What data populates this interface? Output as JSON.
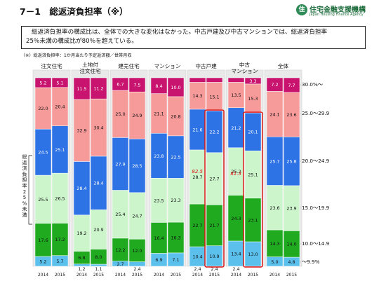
{
  "header": {
    "title": "7－1　総返済負担率（※）",
    "logo_mark": "住",
    "logo_text_jp": "住宅金融支援機構",
    "logo_text_en": "Japan Housing Finance Agency"
  },
  "summary": {
    "line1": "総返済負担率の構成比は、全体での大きな変化はなかった。中古戸建及び中古マンションでは、総返済負担率",
    "line2": "25％未満の構成比が80％を超えている。"
  },
  "note": "（※）総返済負担率：1か月当たり予定返済額／世帯月収",
  "chart_data": {
    "type": "bar",
    "stacked": true,
    "y_axis_label": "総返済負担率25%未満",
    "groups": [
      {
        "name": "注文住宅",
        "years": [
          "2014",
          "2015"
        ]
      },
      {
        "name": "土地付\n注文住宅",
        "years": [
          "2014",
          "2015"
        ]
      },
      {
        "name": "建売住宅",
        "years": [
          "2014",
          "2015"
        ]
      },
      {
        "name": "マンション",
        "years": [
          "2014",
          "2015"
        ]
      },
      {
        "name": "中古戸建",
        "years": [
          "2014",
          "2015"
        ]
      },
      {
        "name": "中古\nマンション",
        "years": [
          "2014",
          "2015"
        ]
      },
      {
        "name": "全体",
        "years": [
          "2014",
          "2015"
        ]
      }
    ],
    "series": [
      {
        "name": "～9.9%",
        "color": "#5bc0eb",
        "values": [
          [
            5.2,
            5.7
          ],
          [
            1.2,
            1.1
          ],
          [
            2.7,
            2.4
          ],
          [
            6.9,
            7.1
          ],
          [
            10.4,
            10.9
          ],
          [
            13.4,
            13.0
          ],
          [
            5.0,
            4.8
          ]
        ]
      },
      {
        "name": "10.0～14.9",
        "color": "#1faa1f",
        "values": [
          [
            17.6,
            17.2
          ],
          [
            6.8,
            8.0
          ],
          [
            12.2,
            12.0
          ],
          [
            16.4,
            16.3
          ],
          [
            22.7,
            21.7
          ],
          [
            24.3,
            23.1
          ],
          [
            14.3,
            14.0
          ]
        ]
      },
      {
        "name": "15.0～19.9",
        "color": "#ccf5cc",
        "values": [
          [
            25.5,
            26.5
          ],
          [
            19.2,
            20.9
          ],
          [
            25.4,
            24.7
          ],
          [
            23.5,
            23.3
          ],
          [
            28.7,
            27.7
          ],
          [
            25.2,
            25.1
          ],
          [
            23.6,
            23.9
          ]
        ]
      },
      {
        "name": "20.0～24.9",
        "color": "#2e73e6",
        "values": [
          [
            24.5,
            25.1
          ],
          [
            28.4,
            28.4
          ],
          [
            27.9,
            28.5
          ],
          [
            23.8,
            22.5
          ],
          [
            21.6,
            22.2
          ],
          [
            21.2,
            20.1
          ],
          [
            25.7,
            25.8
          ]
        ]
      },
      {
        "name": "25.0～29.9",
        "color": "#f79a9a",
        "values": [
          [
            22.0,
            20.4
          ],
          [
            32.9,
            30.4
          ],
          [
            25.0,
            24.9
          ],
          [
            21.1,
            20.8
          ],
          [
            14.3,
            15.1
          ],
          [
            13.5,
            15.3
          ],
          [
            24.1,
            23.6
          ]
        ]
      },
      {
        "name": "30.0%～",
        "color": "#c8146e",
        "values": [
          [
            5.2,
            5.1
          ],
          [
            11.5,
            11.2
          ],
          [
            6.7,
            7.5
          ],
          [
            8.4,
            10.0
          ],
          [
            2.4,
            2.4
          ],
          [
            2.4,
            3.3
          ],
          [
            7.2,
            7.7
          ]
        ]
      }
    ],
    "highlights": [
      {
        "group": 4,
        "year_index": 1,
        "label": "82.5"
      },
      {
        "group": 5,
        "year_index": 1,
        "label": "81.3"
      }
    ],
    "legend_position": "right",
    "ylim": [
      0,
      100
    ],
    "grid": false
  }
}
